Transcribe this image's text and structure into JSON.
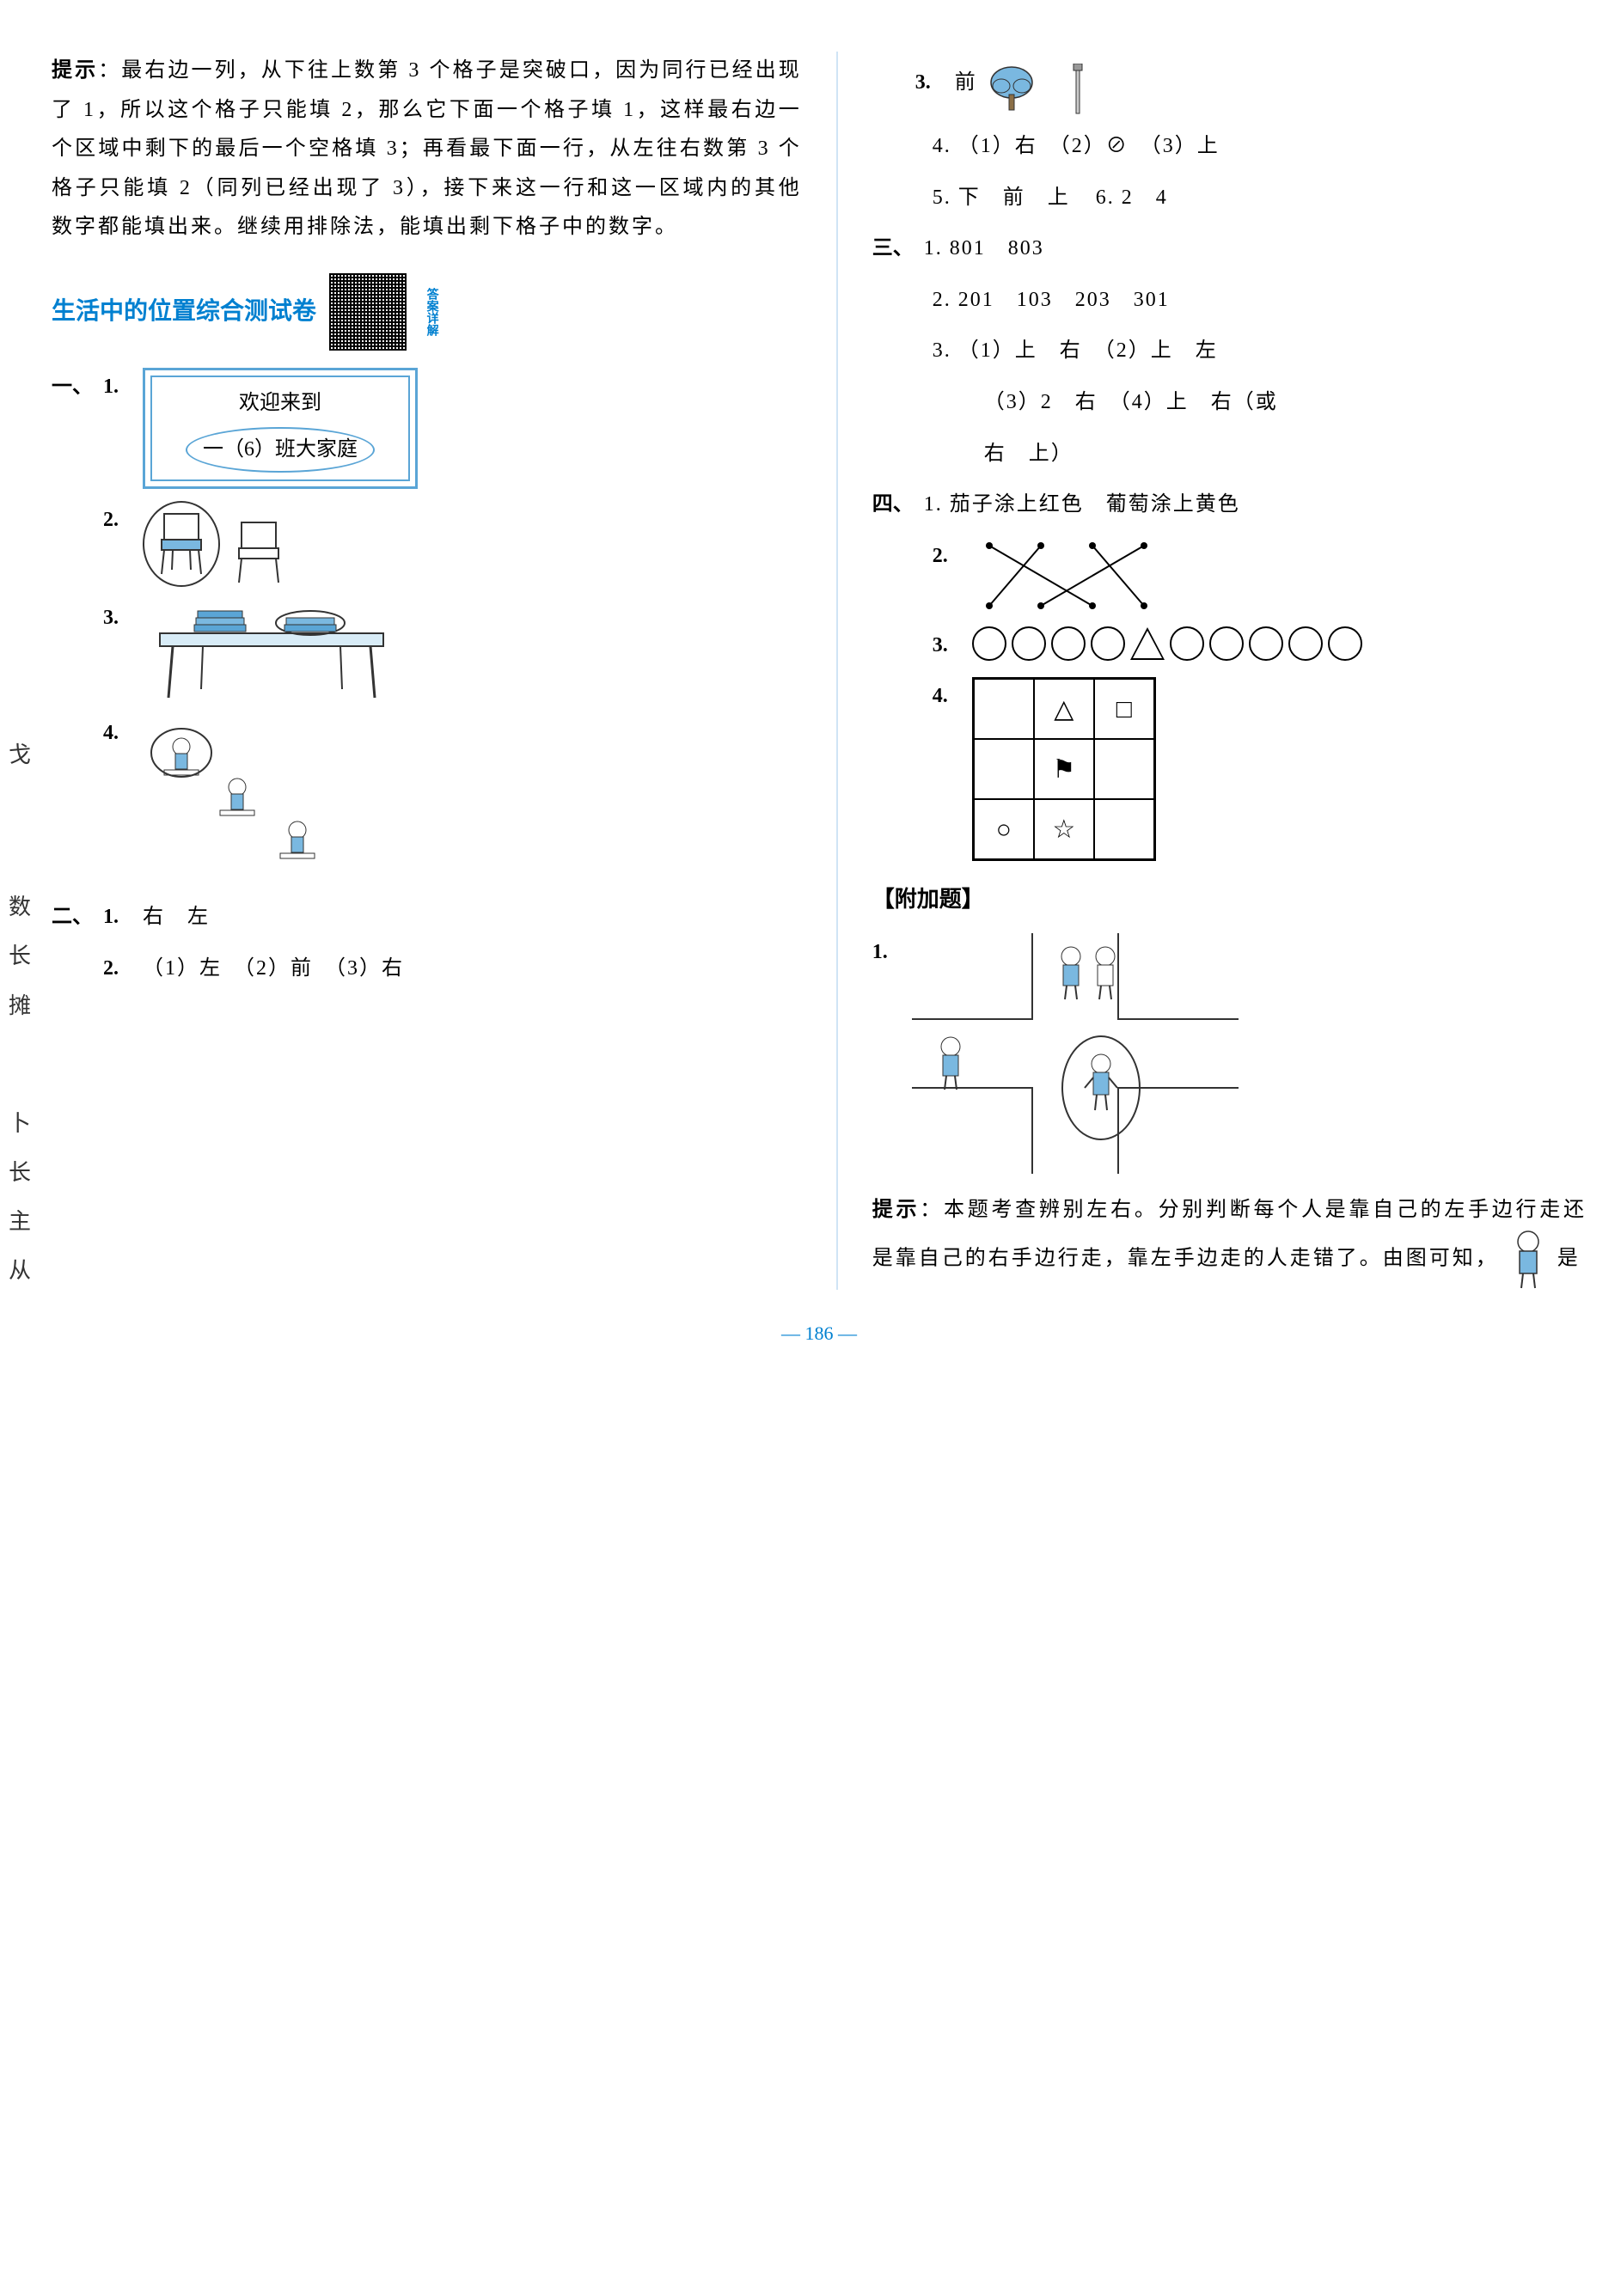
{
  "left": {
    "hint_label": "提示",
    "hint_body": "：最右边一列，从下往上数第 3 个格子是突破口，因为同行已经出现了 1，所以这个格子只能填 2，那么它下面一个格子填 1，这样最右边一个区域中剩下的最后一个空格填 3；再看最下面一行，从左往右数第 3 个格子只能填 2（同列已经出现了 3），接下来这一行和这一区域内的其他数字都能填出来。继续用排除法，能填出剩下格子中的数字。",
    "section_title": "生活中的位置综合测试卷",
    "qr_label": "答案详解",
    "q1_1_line1": "欢迎来到",
    "q1_1_line2": "一（6）班大家庭",
    "sec1": "一、",
    "sec2": "二、",
    "s1": "1.",
    "s2": "2.",
    "s3": "3.",
    "s4": "4.",
    "q2_1": "右　左",
    "q2_2": "（1）左　（2）前　（3）右"
  },
  "right": {
    "r3_label": "3.",
    "r3_text": "前",
    "r4": "4. （1）右　（2）⊘　（3）上",
    "r5": "5. 下　前　上",
    "r6": "6. 2　4",
    "sec3": "三、",
    "r3_1": "1. 801　803",
    "r3_2": "2. 201　103　203　301",
    "r3_3a": "3. （1）上　右　（2）上　左",
    "r3_3b": "（3）2　右　（4）上　右（或",
    "r3_3c": "右　上）",
    "sec4": "四、",
    "r4_1": "1. 茄子涂上红色　葡萄涂上黄色",
    "r4_2": "2.",
    "r4_3": "3.",
    "r4_4": "4.",
    "bonus": "【附加题】",
    "b1": "1.",
    "hint2_label": "提示",
    "hint2_body": "：本题考查辨别左右。分别判断每个人是靠自己的左手边行走还是靠自己的右手边行走，靠左手边走的人走错了。由图可知，",
    "hint2_tail": "是",
    "grid_shapes": [
      "",
      "△",
      "□",
      "",
      "⚑",
      "",
      "○",
      "☆",
      ""
    ],
    "circle_pattern": [
      "c",
      "c",
      "c",
      "c",
      "t",
      "c",
      "c",
      "c",
      "c",
      "c"
    ]
  },
  "edge_letters": [
    "戈",
    "数",
    "长",
    "摊",
    "卜",
    "长",
    "主",
    "从"
  ],
  "page_number": "186",
  "colors": {
    "accent": "#0080d0",
    "divider": "#d0e4f5",
    "board": "#5aa5d6",
    "tree": "#7ab8e0"
  }
}
